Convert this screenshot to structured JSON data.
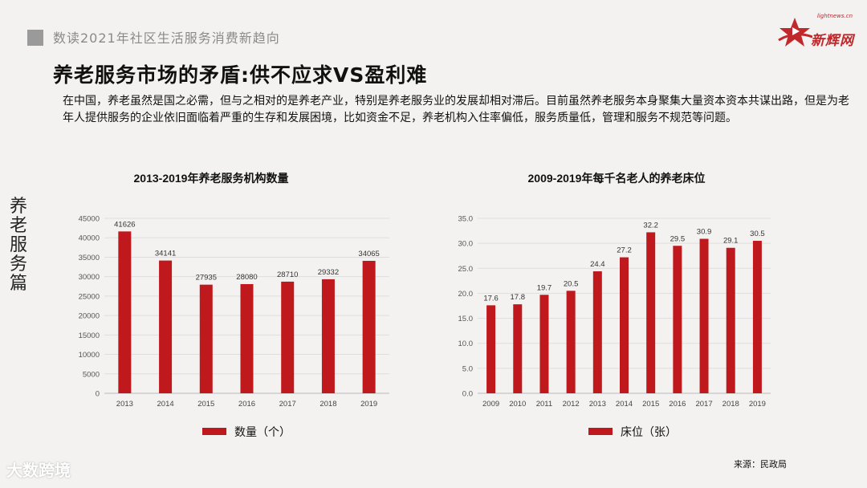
{
  "header": {
    "subtitle": "数读2021年社区生活服务消费新趋向"
  },
  "title": "养老服务市场的矛盾:供不应求VS盈利难",
  "body": "在中国，养老虽然是国之必需，但与之相对的是养老产业，特别是养老服务业的发展却相对滞后。目前虽然养老服务本身聚集大量资本资本共谋出路，但是为老年人提供服务的企业依旧面临着严重的生存和发展困境，比如资金不足，养老机构入住率偏低，服务质量低，管理和服务不规范等问题。",
  "side_label": "养老服务篇",
  "logo": {
    "url": "lightnews.cn",
    "name": "新辉网"
  },
  "watermark": "大数跨境",
  "source": "来源：民政局",
  "colors": {
    "bar": "#c0191d",
    "accent": "#c0282b"
  },
  "chart_data": [
    {
      "type": "bar",
      "title": "2013-2019年养老服务机构数量",
      "categories": [
        "2013",
        "2014",
        "2015",
        "2016",
        "2017",
        "2018",
        "2019"
      ],
      "series": [
        {
          "name": "数量（个）",
          "values": [
            41626,
            34141,
            27935,
            28080,
            28710,
            29332,
            34065
          ]
        }
      ],
      "data_labels": [
        "41626",
        "34141",
        "27935",
        "28080",
        "28710",
        "29332",
        "34065"
      ],
      "yticks": [
        0,
        5000,
        10000,
        15000,
        20000,
        25000,
        30000,
        35000,
        40000,
        45000
      ],
      "ytick_labels": [
        "0",
        "5000",
        "10000",
        "15000",
        "20000",
        "25000",
        "30000",
        "35000",
        "40000",
        "45000"
      ],
      "ylim": [
        0,
        45000
      ],
      "legend": "bottom"
    },
    {
      "type": "bar",
      "title": "2009-2019年每千名老人的养老床位",
      "categories": [
        "2009",
        "2010",
        "2011",
        "2012",
        "2013",
        "2014",
        "2015",
        "2016",
        "2017",
        "2018",
        "2019"
      ],
      "series": [
        {
          "name": "床位（张）",
          "values": [
            17.6,
            17.8,
            19.7,
            20.5,
            24.4,
            27.2,
            32.2,
            29.5,
            30.9,
            29.1,
            30.5
          ]
        }
      ],
      "data_labels": [
        "17.6",
        "17.8",
        "19.7",
        "20.5",
        "24.4",
        "27.2",
        "32.2",
        "29.5",
        "30.9",
        "29.1",
        "30.5"
      ],
      "yticks": [
        0,
        5,
        10,
        15,
        20,
        25,
        30,
        35
      ],
      "ytick_labels": [
        "0.0",
        "5.0",
        "10.0",
        "15.0",
        "20.0",
        "25.0",
        "30.0",
        "35.0"
      ],
      "ylim": [
        0,
        35
      ],
      "legend": "bottom"
    }
  ]
}
